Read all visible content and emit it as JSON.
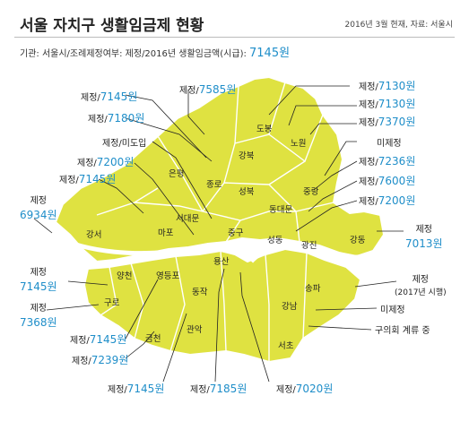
{
  "title": "서울 자치구 생활임금제 현황",
  "meta": "2016년 3월 현재, 자료: 서울시",
  "subtitle": {
    "prefix": "기관: 서울시/조례제정여부: 제정/2016년 생활임금액(시급): ",
    "value": "7145원"
  },
  "colors": {
    "land": "#dfe241",
    "accent": "#1f8ec9"
  },
  "districts": [
    "도봉",
    "노원",
    "강북",
    "성북",
    "중랑",
    "은평",
    "종로",
    "동대문",
    "서대문",
    "마포",
    "중구",
    "성동",
    "광진",
    "강동",
    "강서",
    "용산",
    "양천",
    "영등포",
    "송파",
    "구로",
    "동작",
    "강남",
    "금천",
    "관악",
    "서초"
  ],
  "labels": [
    {
      "pre": "제정/",
      "num": "7145원"
    },
    {
      "pre": "제정/",
      "num": "7585원"
    },
    {
      "pre": "제정/",
      "num": "7130원"
    },
    {
      "pre": "제정/",
      "num": "7130원"
    },
    {
      "pre": "제정/",
      "num": "7180원"
    },
    {
      "pre": "제정/",
      "num": "7370원"
    },
    {
      "pre": "제정/미도입",
      "num": ""
    },
    {
      "pre": "미제정",
      "num": ""
    },
    {
      "pre": "제정/",
      "num": "7200원"
    },
    {
      "pre": "제정/",
      "num": "7236원"
    },
    {
      "pre": "제정/",
      "num": "7145원"
    },
    {
      "pre": "제정/",
      "num": "7600원"
    },
    {
      "pre": "제정/",
      "num": "7200원"
    },
    {
      "pre": "제정",
      "num": "6934원"
    },
    {
      "pre": "제정",
      "num": "7013원"
    },
    {
      "pre": "제정",
      "num": "7145원"
    },
    {
      "pre": "제정",
      "num": "(2017년 시행)"
    },
    {
      "pre": "제정",
      "num": "7368원"
    },
    {
      "pre": "미제정",
      "num": ""
    },
    {
      "pre": "제정/",
      "num": "7145원"
    },
    {
      "pre": "구의회 계류 중",
      "num": ""
    },
    {
      "pre": "제정/",
      "num": "7239원"
    },
    {
      "pre": "제정/",
      "num": "7145원"
    },
    {
      "pre": "제정/",
      "num": "7185원"
    },
    {
      "pre": "제정/",
      "num": "7020원"
    }
  ]
}
